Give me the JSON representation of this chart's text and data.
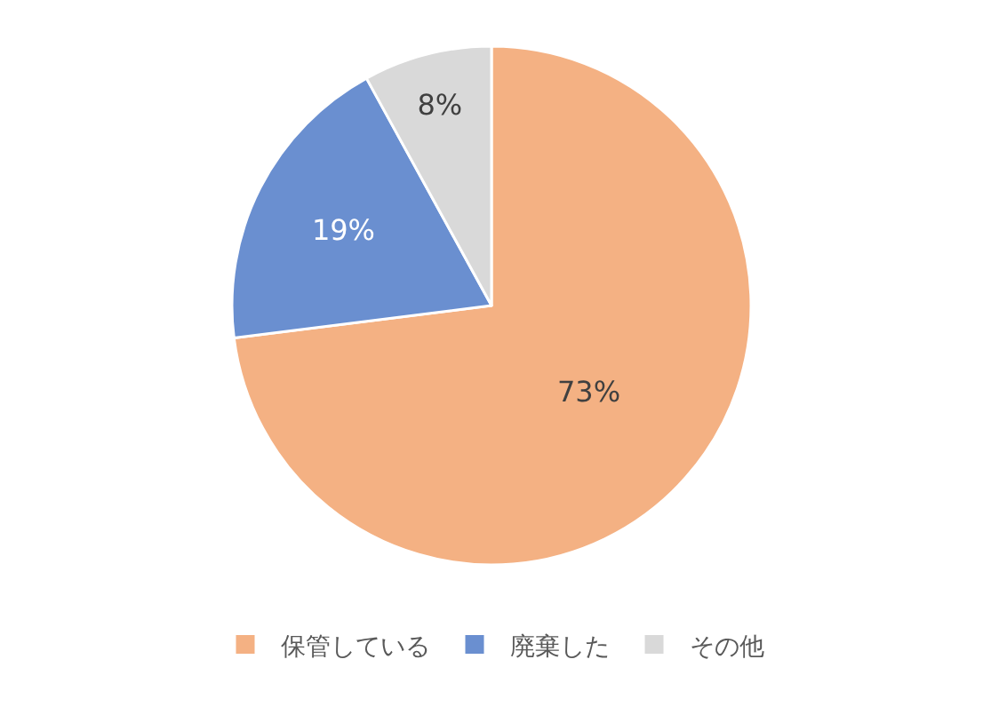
{
  "chart_data": {
    "type": "pie",
    "categories": [
      "保管している",
      "廃棄した",
      "その他"
    ],
    "values": [
      73,
      19,
      8
    ],
    "value_labels": [
      "73%",
      "19%",
      "8%"
    ],
    "colors": [
      "#f4b183",
      "#6a8fd0",
      "#d9d9d9"
    ],
    "legend": "bottom"
  }
}
